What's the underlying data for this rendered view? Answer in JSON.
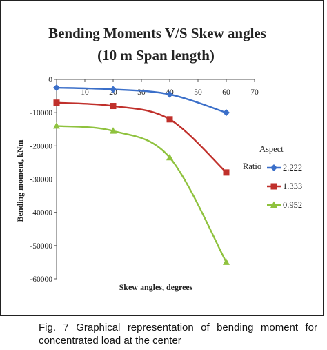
{
  "chart_data": {
    "type": "line",
    "title": "Bending Moments V/S Skew angles",
    "subtitle": "(10 m  Span length)",
    "xlabel": "Skew angles, degrees",
    "ylabel": "Bending moment, kNm",
    "xlim": [
      0,
      70
    ],
    "ylim": [
      -60000,
      0
    ],
    "x_ticks": [
      "10",
      "20",
      "30",
      "40",
      "50",
      "60",
      "70"
    ],
    "y_ticks": [
      "0",
      "-10000",
      "-20000",
      "-30000",
      "-40000",
      "-50000",
      "-60000"
    ],
    "x_tick_values": [
      10,
      20,
      30,
      40,
      50,
      60,
      70
    ],
    "y_tick_values": [
      0,
      -10000,
      -20000,
      -30000,
      -40000,
      -50000,
      -60000
    ],
    "grid": false,
    "legend_title_line1": "Aspect",
    "legend_title_line2": "Ratio",
    "legend_position": "right",
    "series": [
      {
        "name": "2.222",
        "color": "#3b6fc9",
        "marker": "diamond",
        "x": [
          0,
          20,
          40,
          60
        ],
        "y": [
          -2500,
          -3000,
          -4500,
          -10000
        ]
      },
      {
        "name": "1.333",
        "color": "#c0302b",
        "marker": "square",
        "x": [
          0,
          20,
          40,
          60
        ],
        "y": [
          -7000,
          -8000,
          -12000,
          -28000
        ]
      },
      {
        "name": "0.952",
        "color": "#8fc23e",
        "marker": "triangle",
        "x": [
          0,
          20,
          40,
          60
        ],
        "y": [
          -14000,
          -15500,
          -23500,
          -55000
        ]
      }
    ]
  },
  "caption": "Fig. 7 Graphical representation of bending moment for concentrated load at the center"
}
